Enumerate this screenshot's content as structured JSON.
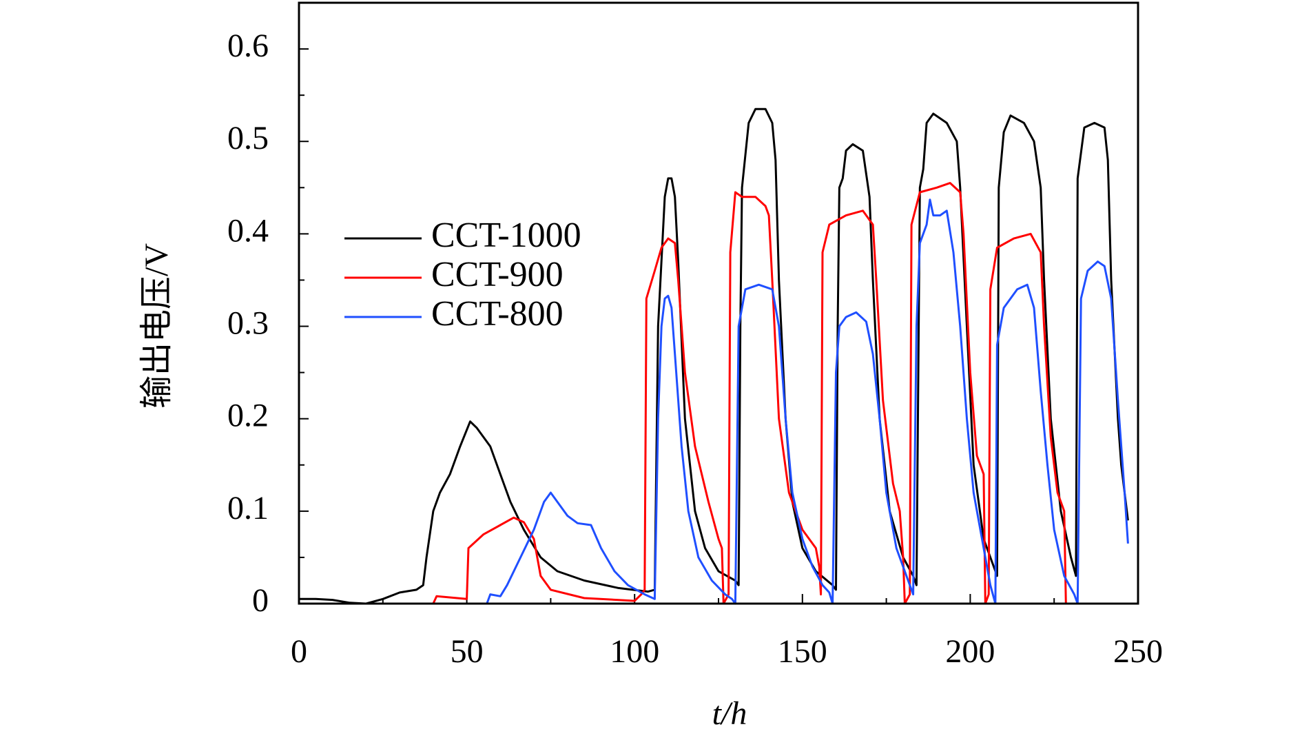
{
  "chart_data": {
    "type": "line",
    "xlabel": "t/h",
    "ylabel": "输出电压/V",
    "xlim": [
      0,
      250
    ],
    "xticks": [
      0,
      50,
      100,
      150,
      200,
      250
    ],
    "xticks_minor": [
      25,
      75,
      125,
      175,
      225
    ],
    "ylim": [
      0,
      0.65
    ],
    "yticks": [
      0,
      0.1,
      0.2,
      0.3,
      0.4,
      0.5,
      0.6
    ],
    "yticks_minor": [
      0.05,
      0.15,
      0.25,
      0.35,
      0.45,
      0.55
    ],
    "legend": "center-left",
    "series": [
      {
        "name": "CCT-1000",
        "color": "#000000",
        "x": [
          0,
          5,
          10,
          15,
          20,
          25,
          30,
          35,
          37,
          38,
          40,
          42,
          45,
          48,
          51,
          53,
          57,
          60,
          63,
          67,
          72,
          77,
          85,
          95,
          104,
          106,
          107,
          109,
          110,
          111,
          112,
          113,
          115,
          118,
          121,
          125,
          130,
          131,
          131.5,
          132,
          134,
          136,
          139,
          141,
          142,
          143,
          145,
          147,
          150,
          154,
          159,
          160,
          160.5,
          161,
          162,
          163,
          165,
          168,
          170,
          171,
          173,
          176,
          180,
          183,
          184,
          185,
          186,
          187,
          189,
          193,
          196,
          197,
          199,
          201,
          204,
          207,
          208,
          208.5,
          210,
          212,
          216,
          219,
          221,
          222,
          224,
          227,
          230,
          231.5,
          232,
          234,
          237,
          240,
          241,
          242,
          244,
          245,
          247
        ],
        "values": [
          0.005,
          0.005,
          0.004,
          0.001,
          0,
          0.005,
          0.012,
          0.015,
          0.02,
          0.05,
          0.1,
          0.12,
          0.14,
          0.17,
          0.197,
          0.19,
          0.17,
          0.14,
          0.11,
          0.08,
          0.05,
          0.035,
          0.025,
          0.017,
          0.013,
          0.015,
          0.3,
          0.44,
          0.46,
          0.46,
          0.44,
          0.37,
          0.2,
          0.1,
          0.06,
          0.035,
          0.025,
          0.02,
          0.3,
          0.45,
          0.52,
          0.535,
          0.535,
          0.52,
          0.48,
          0.35,
          0.2,
          0.11,
          0.06,
          0.035,
          0.02,
          0.015,
          0.3,
          0.45,
          0.46,
          0.49,
          0.497,
          0.49,
          0.44,
          0.35,
          0.2,
          0.1,
          0.05,
          0.03,
          0.02,
          0.45,
          0.47,
          0.52,
          0.53,
          0.52,
          0.5,
          0.45,
          0.3,
          0.15,
          0.07,
          0.04,
          0.03,
          0.45,
          0.51,
          0.528,
          0.52,
          0.5,
          0.45,
          0.35,
          0.2,
          0.1,
          0.05,
          0.03,
          0.46,
          0.515,
          0.52,
          0.515,
          0.48,
          0.35,
          0.2,
          0.15,
          0.09
        ]
      },
      {
        "name": "CCT-900",
        "color": "#ff0000",
        "x": [
          0,
          40,
          41,
          50,
          50.5,
          55,
          60,
          64,
          67,
          70,
          72,
          75,
          85,
          100,
          102,
          103,
          103.5,
          106,
          108,
          110,
          112,
          113,
          115,
          118,
          122,
          125,
          126,
          126.5,
          128,
          128.5,
          130,
          132,
          136,
          139,
          140,
          141,
          143,
          146,
          150,
          154,
          155,
          155.5,
          156,
          158,
          163,
          168,
          171,
          172,
          174,
          177,
          179,
          180,
          180.5,
          182,
          182.5,
          185,
          190,
          194,
          197,
          198,
          200,
          202,
          204,
          204.5,
          205.5,
          206,
          208,
          213,
          218,
          221,
          222,
          224,
          226,
          228,
          228.5
        ],
        "values": [
          0,
          0,
          0.008,
          0.005,
          0.06,
          0.075,
          0.085,
          0.093,
          0.088,
          0.07,
          0.03,
          0.015,
          0.006,
          0.003,
          0.01,
          0.015,
          0.33,
          0.36,
          0.385,
          0.395,
          0.39,
          0.35,
          0.25,
          0.17,
          0.11,
          0.07,
          0.06,
          0,
          0.01,
          0.38,
          0.445,
          0.44,
          0.44,
          0.43,
          0.42,
          0.35,
          0.2,
          0.12,
          0.08,
          0.06,
          0.04,
          0.01,
          0.38,
          0.41,
          0.42,
          0.425,
          0.41,
          0.35,
          0.22,
          0.13,
          0.1,
          0.05,
          0,
          0.01,
          0.41,
          0.445,
          0.45,
          0.455,
          0.445,
          0.4,
          0.25,
          0.16,
          0.14,
          0,
          0.01,
          0.34,
          0.385,
          0.395,
          0.4,
          0.38,
          0.3,
          0.18,
          0.12,
          0.1,
          0
        ]
      },
      {
        "name": "CCT-800",
        "color": "#1f4fff",
        "x": [
          0,
          40,
          56,
          57,
          60,
          62,
          66,
          70,
          73,
          75,
          77,
          80,
          83,
          87,
          90,
          94,
          98,
          103,
          106,
          107,
          108,
          109,
          110,
          111,
          112,
          114,
          116,
          119,
          123,
          127,
          129,
          130,
          131,
          133,
          137,
          141,
          143,
          145,
          147,
          150,
          153,
          156,
          158,
          159,
          160,
          161,
          163,
          166,
          169,
          171,
          173,
          175,
          178,
          181,
          183,
          184,
          185,
          187,
          188,
          189,
          191,
          193,
          195,
          197,
          199,
          201,
          204,
          206,
          207.5,
          208,
          210,
          214,
          217,
          219,
          221,
          223,
          225,
          228,
          231,
          232,
          233,
          235,
          238,
          240,
          242,
          244,
          246,
          247
        ],
        "values": [
          0,
          0,
          0,
          0.01,
          0.008,
          0.02,
          0.05,
          0.08,
          0.11,
          0.12,
          0.11,
          0.095,
          0.087,
          0.085,
          0.06,
          0.035,
          0.02,
          0.01,
          0.005,
          0.2,
          0.3,
          0.33,
          0.333,
          0.32,
          0.27,
          0.17,
          0.1,
          0.05,
          0.025,
          0.01,
          0.005,
          0,
          0.3,
          0.34,
          0.345,
          0.34,
          0.3,
          0.2,
          0.12,
          0.07,
          0.04,
          0.02,
          0.012,
          0,
          0.25,
          0.3,
          0.31,
          0.315,
          0.305,
          0.27,
          0.2,
          0.12,
          0.06,
          0.03,
          0.01,
          0.3,
          0.39,
          0.41,
          0.437,
          0.42,
          0.42,
          0.425,
          0.38,
          0.3,
          0.2,
          0.12,
          0.06,
          0.02,
          0,
          0.28,
          0.32,
          0.34,
          0.345,
          0.32,
          0.23,
          0.15,
          0.08,
          0.03,
          0.01,
          0,
          0.33,
          0.36,
          0.37,
          0.365,
          0.33,
          0.22,
          0.12,
          0.065
        ]
      }
    ]
  }
}
